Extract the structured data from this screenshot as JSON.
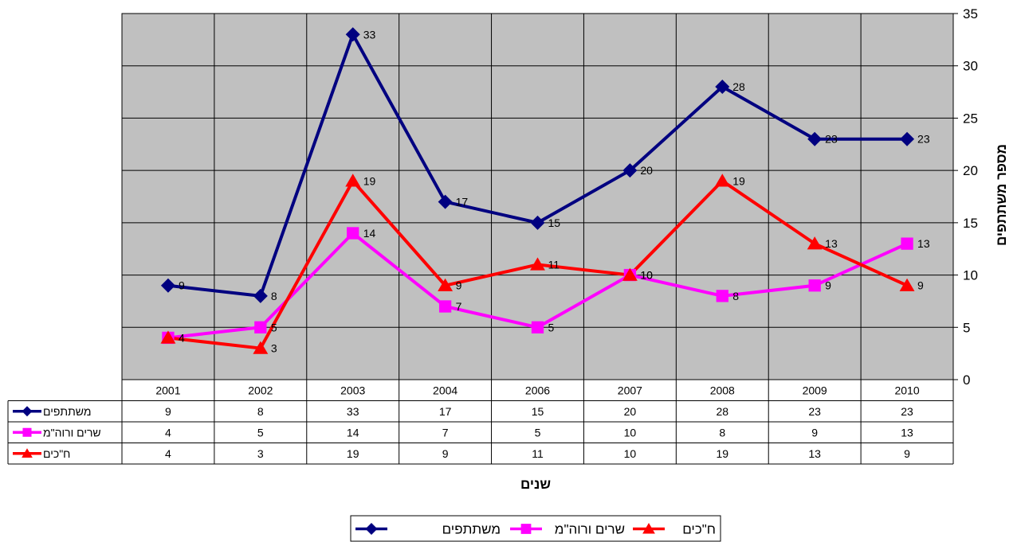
{
  "chart_data": {
    "type": "line",
    "categories": [
      "2001",
      "2002",
      "2003",
      "2004",
      "2006",
      "2007",
      "2008",
      "2009",
      "2010"
    ],
    "series": [
      {
        "name": "משתתפים",
        "values": [
          9,
          8,
          33,
          17,
          15,
          20,
          28,
          23,
          23
        ],
        "color": "#000080",
        "marker": "diamond"
      },
      {
        "name": "שרים ורוה\"מ",
        "values": [
          4,
          5,
          14,
          7,
          5,
          10,
          8,
          9,
          13
        ],
        "color": "#ff00ff",
        "marker": "square"
      },
      {
        "name": "ח\"כים",
        "values": [
          4,
          3,
          19,
          9,
          11,
          10,
          19,
          13,
          9
        ],
        "color": "#ff0000",
        "marker": "triangle"
      }
    ],
    "ylabel": "מספר משתתפים",
    "xlabel": "שנים",
    "ylim": [
      0,
      35
    ],
    "yticks": [
      0,
      5,
      10,
      15,
      20,
      25,
      30,
      35
    ],
    "y_axis_side": "right",
    "plot_background": "#c0c0c0",
    "grid": true,
    "data_table": true,
    "legend": "bottom"
  }
}
